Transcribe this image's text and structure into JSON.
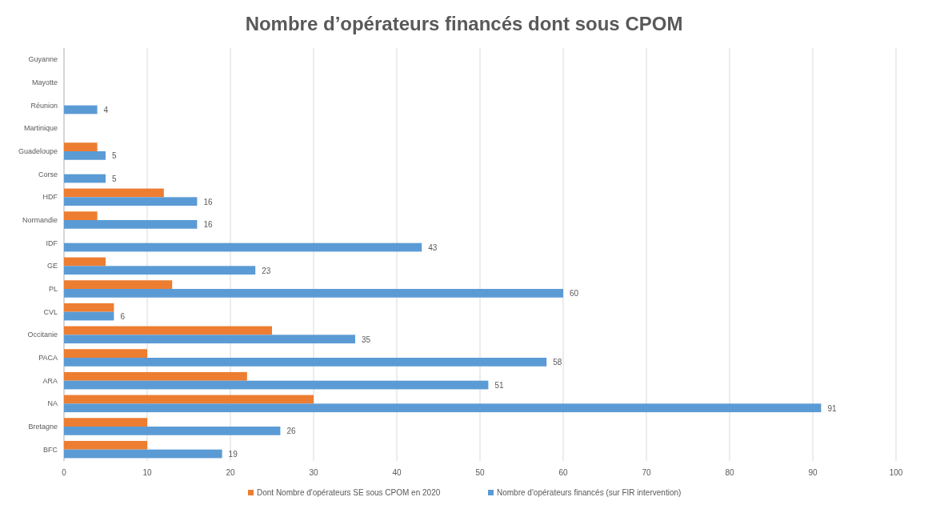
{
  "chart_data": {
    "type": "bar",
    "orientation": "horizontal",
    "title": "Nombre d’opérateurs financés dont sous CPOM",
    "categories": [
      "Guyanne",
      "Mayotte",
      "Réunion",
      "Martinique",
      "Guadeloupe",
      "Corse",
      "HDF",
      "Normandie",
      "IDF",
      "GE",
      "PL",
      "CVL",
      "Occitanie",
      "PACA",
      "ARA",
      "NA",
      "Bretagne",
      "BFC"
    ],
    "series": [
      {
        "name": "Dont Nombre d'opérateurs SE sous CPOM en 2020",
        "color": "#ed7d31",
        "values": [
          null,
          null,
          null,
          null,
          4,
          null,
          12,
          4,
          null,
          5,
          13,
          6,
          25,
          10,
          22,
          30,
          10,
          10
        ]
      },
      {
        "name": "Nombre d'opérateurs financés (sur FIR intervention)",
        "color": "#5b9bd5",
        "values": [
          null,
          null,
          4,
          null,
          5,
          5,
          16,
          16,
          43,
          23,
          60,
          6,
          35,
          58,
          51,
          91,
          26,
          19
        ],
        "value_labels": [
          null,
          null,
          "4",
          null,
          "5",
          "5",
          "16",
          "16",
          "43",
          "23",
          "60",
          "6",
          "35",
          "58",
          "51",
          "91",
          "26",
          "19"
        ]
      }
    ],
    "xlim": [
      0,
      100
    ],
    "xticks": [
      0,
      10,
      20,
      30,
      40,
      50,
      60,
      70,
      80,
      90,
      100
    ],
    "grid": "x",
    "legend": "bottom"
  }
}
